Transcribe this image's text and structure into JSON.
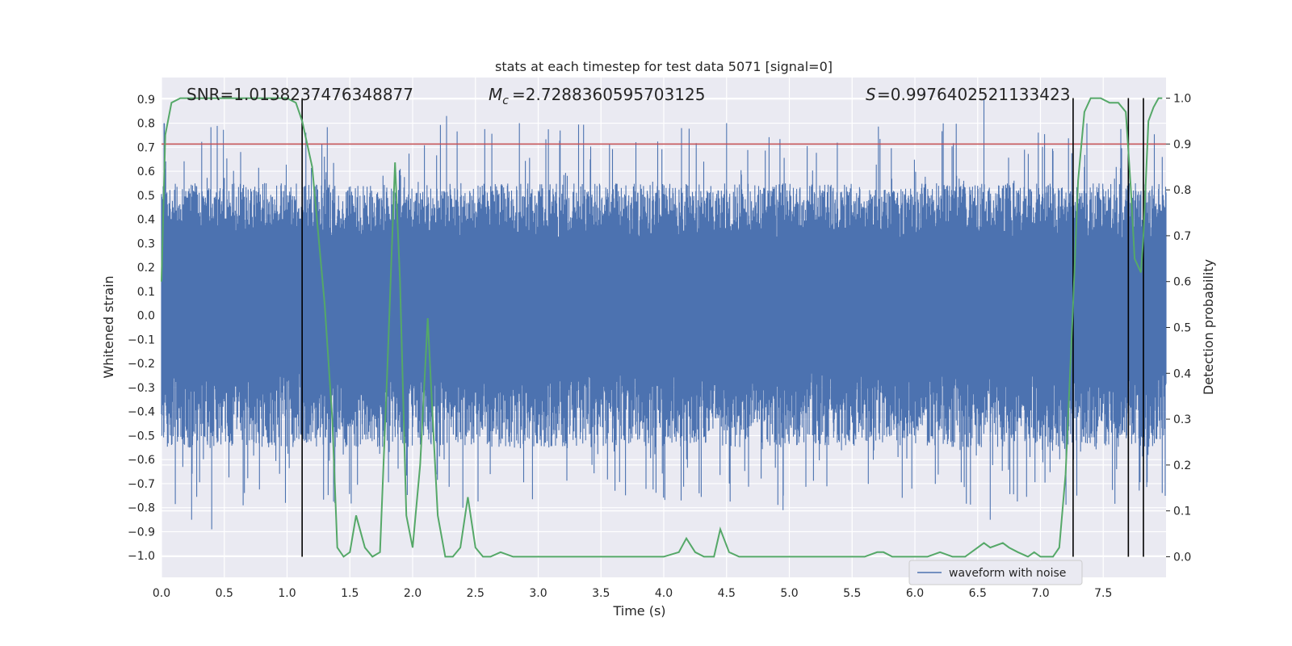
{
  "chart_data": {
    "type": "line",
    "title": "stats at each timestep for test data 5071 [signal=0]",
    "xlabel": "Time (s)",
    "ylabel": "Whitened strain",
    "y2label": "Detection probability",
    "xlim": [
      0.0,
      8.0
    ],
    "ylim": [
      -1.09,
      0.99
    ],
    "y2lim": [
      -0.045,
      1.045
    ],
    "xticks": [
      "0.0",
      "0.5",
      "1.0",
      "1.5",
      "2.0",
      "2.5",
      "3.0",
      "3.5",
      "4.0",
      "4.5",
      "5.0",
      "5.5",
      "6.0",
      "6.5",
      "7.0",
      "7.5"
    ],
    "yticks": [
      "0.9",
      "0.8",
      "0.7",
      "0.6",
      "0.5",
      "0.4",
      "0.3",
      "0.2",
      "0.1",
      "0.0",
      "−0.1",
      "−0.2",
      "−0.3",
      "−0.4",
      "−0.5",
      "−0.6",
      "−0.7",
      "−0.8",
      "−0.9",
      "−1.0"
    ],
    "y2ticks": [
      "1.0",
      "0.9",
      "0.8",
      "0.7",
      "0.6",
      "0.5",
      "0.4",
      "0.3",
      "0.2",
      "0.1",
      "0.0"
    ],
    "grid": true,
    "annotations": {
      "snr": "SNR=1.0138237476348877",
      "mc": "=2.7288360595703125",
      "s": "=0.9976402521133423"
    },
    "threshold": {
      "y2": 0.9,
      "color": "#c44e52"
    },
    "vlines_x": [
      1.12,
      7.26,
      7.7,
      7.82
    ],
    "legend": {
      "position": "lower-right",
      "label": "waveform with noise"
    },
    "colors": {
      "waveform": "#4c72b0",
      "probability": "#55a868",
      "threshold": "#c44e52",
      "vline": "#000000",
      "background": "#eaeaf2"
    },
    "series": [
      {
        "name": "waveform with noise",
        "axis": "left",
        "envelope": {
          "core_min": -0.24,
          "core_max": 0.32,
          "typical_max": 0.55,
          "typical_min": -0.55,
          "max": 0.9,
          "min": -0.89
        },
        "notable_peaks_x": [
          0.02,
          1.15,
          2.27,
          2.85,
          4.5,
          6.55
        ],
        "notable_peaks_y": [
          0.8,
          0.76,
          0.83,
          0.8,
          0.8,
          0.9
        ],
        "notable_troughs_x": [
          0.24,
          0.4,
          0.65,
          2.4,
          4.95,
          6.6
        ],
        "notable_troughs_y": [
          -0.85,
          -0.89,
          -0.79,
          -0.8,
          -0.81,
          -0.85
        ]
      },
      {
        "name": "detection probability",
        "axis": "right",
        "x": [
          0.0,
          0.03,
          0.08,
          0.15,
          0.3,
          0.5,
          0.7,
          0.9,
          1.0,
          1.07,
          1.12,
          1.2,
          1.3,
          1.36,
          1.4,
          1.45,
          1.5,
          1.55,
          1.62,
          1.68,
          1.74,
          1.8,
          1.86,
          1.9,
          1.95,
          2.0,
          2.06,
          2.12,
          2.16,
          2.2,
          2.26,
          2.32,
          2.38,
          2.44,
          2.5,
          2.56,
          2.62,
          2.7,
          2.8,
          3.0,
          3.2,
          3.4,
          3.6,
          3.8,
          4.0,
          4.12,
          4.18,
          4.25,
          4.32,
          4.4,
          4.45,
          4.52,
          4.6,
          4.7,
          4.8,
          4.9,
          5.0,
          5.2,
          5.4,
          5.6,
          5.7,
          5.75,
          5.82,
          5.9,
          6.0,
          6.1,
          6.2,
          6.3,
          6.4,
          6.5,
          6.55,
          6.6,
          6.7,
          6.75,
          6.82,
          6.9,
          6.95,
          7.0,
          7.05,
          7.1,
          7.15,
          7.2,
          7.26,
          7.3,
          7.35,
          7.4,
          7.48,
          7.55,
          7.62,
          7.68,
          7.72,
          7.75,
          7.8,
          7.82,
          7.86,
          7.9,
          7.94,
          7.97
        ],
        "y": [
          0.6,
          0.92,
          0.99,
          1.0,
          1.0,
          1.0,
          1.0,
          1.0,
          1.0,
          0.99,
          0.95,
          0.85,
          0.55,
          0.3,
          0.02,
          0.0,
          0.01,
          0.09,
          0.02,
          0.0,
          0.01,
          0.42,
          0.86,
          0.6,
          0.09,
          0.02,
          0.2,
          0.52,
          0.3,
          0.09,
          0.0,
          0.0,
          0.02,
          0.13,
          0.02,
          0.0,
          0.0,
          0.01,
          0.0,
          0.0,
          0.0,
          0.0,
          0.0,
          0.0,
          0.0,
          0.01,
          0.04,
          0.01,
          0.0,
          0.0,
          0.06,
          0.01,
          0.0,
          0.0,
          0.0,
          0.0,
          0.0,
          0.0,
          0.0,
          0.0,
          0.01,
          0.01,
          0.0,
          0.0,
          0.0,
          0.0,
          0.01,
          0.0,
          0.0,
          0.02,
          0.03,
          0.02,
          0.03,
          0.02,
          0.01,
          0.0,
          0.01,
          0.0,
          0.0,
          0.0,
          0.02,
          0.18,
          0.55,
          0.82,
          0.97,
          1.0,
          1.0,
          0.99,
          0.99,
          0.97,
          0.8,
          0.65,
          0.62,
          0.7,
          0.95,
          0.98,
          1.0,
          1.0
        ]
      }
    ]
  }
}
